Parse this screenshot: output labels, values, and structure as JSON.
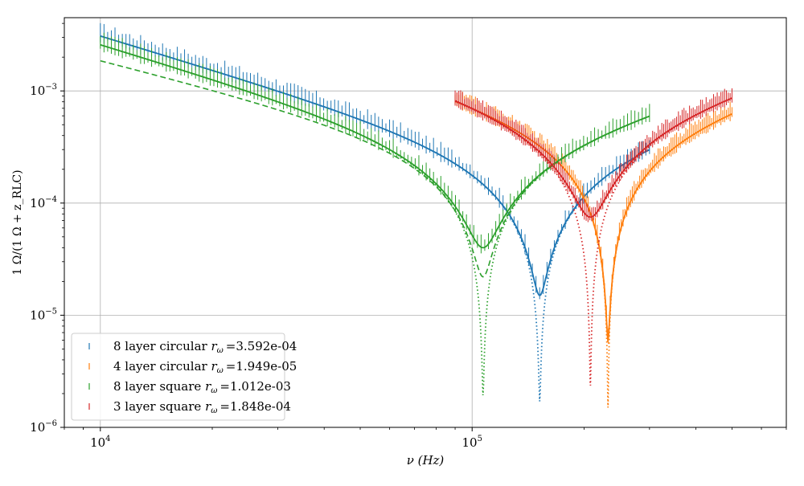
{
  "chart_data": {
    "type": "line",
    "title": "",
    "xlabel": "ν (Hz)",
    "ylabel": "1 Ω/(1 Ω + z_RLC)",
    "xscale": "log",
    "yscale": "log",
    "xlim": [
      8000,
      700000
    ],
    "ylim": [
      1e-06,
      0.0045
    ],
    "grid": true,
    "legend_position": "lower-left",
    "x_tick_labels": [
      {
        "value": 10000,
        "base": "10",
        "exp": "4"
      },
      {
        "value": 100000,
        "base": "10",
        "exp": "5"
      }
    ],
    "y_tick_labels": [
      {
        "value": 1e-06,
        "base": "10",
        "exp": "−6"
      },
      {
        "value": 1e-05,
        "base": "10",
        "exp": "−5"
      },
      {
        "value": 0.0001,
        "base": "10",
        "exp": "−4"
      },
      {
        "value": 0.001,
        "base": "10",
        "exp": "−3"
      }
    ],
    "series": [
      {
        "name": "8 layer circular",
        "legend_prefix": "8 layer circular ",
        "legend_value": "=3.592e-04",
        "color": "#1f77b4",
        "x_range": [
          10000,
          300000
        ],
        "peak_amplitude": 0.0031,
        "resonance_hz": 152000,
        "fit_min": 1.5e-05,
        "dotted_min": 1.7e-06,
        "dashed_offset_at_low_freq": 1.0
      },
      {
        "name": "4 layer circular",
        "legend_prefix": "4 layer circular ",
        "legend_value": "=1.949e-05",
        "color": "#ff7f0e",
        "x_range": [
          90000,
          500000
        ],
        "peak_amplitude": 0.00095,
        "resonance_hz": 232000,
        "fit_min": 6e-06,
        "dotted_min": 1.5e-06,
        "dashed_offset_at_low_freq": 1.0
      },
      {
        "name": "8 layer square",
        "legend_prefix": "8 layer square ",
        "legend_value": "=1.012e-03",
        "color": "#2ca02c",
        "x_range": [
          10000,
          300000
        ],
        "peak_amplitude": 0.0026,
        "resonance_hz": 107000,
        "fit_min": 4e-05,
        "dotted_min": 1.9e-06,
        "dashed_min": 2.2e-05,
        "dashed_offset_at_low_freq": 0.72
      },
      {
        "name": "3 layer square",
        "legend_prefix": "3 layer square ",
        "legend_value": "=1.848e-04",
        "color": "#d62728",
        "x_range": [
          90000,
          500000
        ],
        "peak_amplitude": 0.001,
        "resonance_hz": 208000,
        "fit_min": 7.5e-05,
        "dotted_min": 2.3e-06,
        "dashed_offset_at_low_freq": 1.0
      }
    ]
  }
}
